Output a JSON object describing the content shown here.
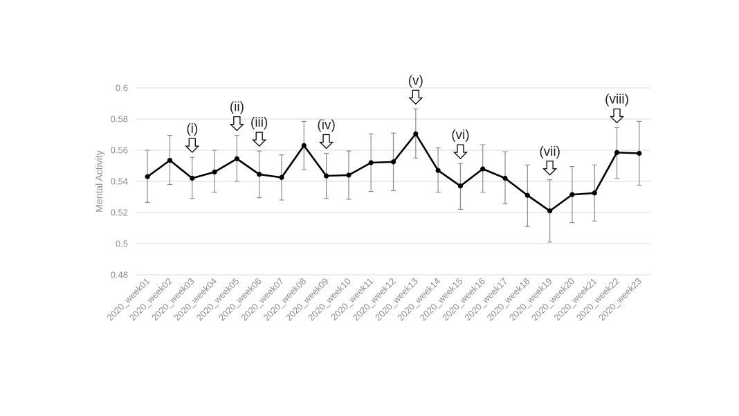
{
  "chart_data": {
    "type": "line",
    "title": "",
    "xlabel": "",
    "ylabel": "Mental Activity",
    "ylim": [
      0.48,
      0.6
    ],
    "y_ticks": [
      "0.48",
      "0.5",
      "0.52",
      "0.54",
      "0.56",
      "0.58",
      "0.6"
    ],
    "grid": true,
    "categories": [
      "2020_week01",
      "2020_week02",
      "2020_week03",
      "2020_week04",
      "2020_week05",
      "2020_week06",
      "2020_week07",
      "2020_week08",
      "2020_week09",
      "2020_week10",
      "2020_week11",
      "2020_week12",
      "2020_week13",
      "2020_week14",
      "2020_week15",
      "2020_week16",
      "2020_week17",
      "2020_week18",
      "2020_week19",
      "2020_week20",
      "2020_week21",
      "2020_week22",
      "2020_week23"
    ],
    "series": [
      {
        "values": [
          0.543,
          0.5535,
          0.542,
          0.546,
          0.5545,
          0.5445,
          0.5425,
          0.563,
          0.5435,
          0.544,
          0.552,
          0.5525,
          0.5705,
          0.547,
          0.537,
          0.548,
          0.542,
          0.531,
          0.521,
          0.5315,
          0.5325,
          0.5585,
          0.558
        ],
        "error_low": [
          0.5265,
          0.538,
          0.529,
          0.533,
          0.54,
          0.5295,
          0.528,
          0.5475,
          0.529,
          0.5285,
          0.5335,
          0.534,
          0.555,
          0.533,
          0.522,
          0.533,
          0.5255,
          0.511,
          0.501,
          0.5135,
          0.5145,
          0.542,
          0.5375
        ],
        "error_high": [
          0.56,
          0.5695,
          0.5555,
          0.56,
          0.5695,
          0.5595,
          0.557,
          0.5785,
          0.558,
          0.5595,
          0.5705,
          0.571,
          0.5865,
          0.5615,
          0.5515,
          0.5635,
          0.559,
          0.5505,
          0.541,
          0.5495,
          0.5505,
          0.5745,
          0.5785
        ],
        "color": "#000000"
      }
    ],
    "annotations": [
      {
        "label": "(i)",
        "category": "2020_week03"
      },
      {
        "label": "(ii)",
        "category": "2020_week05"
      },
      {
        "label": "(iii)",
        "category": "2020_week06"
      },
      {
        "label": "(iv)",
        "category": "2020_week09"
      },
      {
        "label": "(v)",
        "category": "2020_week13"
      },
      {
        "label": "(vi)",
        "category": "2020_week15"
      },
      {
        "label": "(vii)",
        "category": "2020_week19"
      },
      {
        "label": "(viii)",
        "category": "2020_week22"
      }
    ],
    "colors": {
      "line": "#000000",
      "error_bar": "#8c8c8c",
      "grid": "#d9d9d9",
      "tick_text": "#8c8c8c"
    }
  }
}
